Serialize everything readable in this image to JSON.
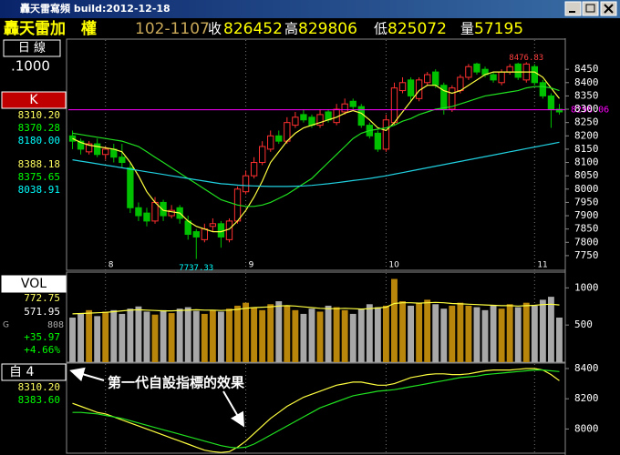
{
  "window": {
    "title": "轟天雷寫頻 build:2012-12-18"
  },
  "header": {
    "name": "轟天雷加　權",
    "code": "102-1107",
    "quotes": [
      {
        "label": "收",
        "value": "826452"
      },
      {
        "label": "高",
        "value": "829806"
      },
      {
        "label": "低",
        "value": "825072"
      },
      {
        "label": "量",
        "value": "57195"
      }
    ]
  },
  "side": {
    "period": "日 線",
    "scale": ".1000",
    "k_box": "K",
    "k_values": [
      {
        "text": "8310.20",
        "color": "#ffff60"
      },
      {
        "text": "8370.28",
        "color": "#00ff00"
      },
      {
        "text": "8180.00",
        "color": "#00ffff"
      },
      {
        "text": "8388.18",
        "color": "#ffff60"
      },
      {
        "text": "8375.65",
        "color": "#00ff00"
      },
      {
        "text": "8038.91",
        "color": "#00ffff"
      }
    ],
    "vol_box": "VOL",
    "vol_values": [
      {
        "text": "772.75",
        "color": "#ffff60"
      },
      {
        "text": "571.95",
        "color": "#ffffff"
      }
    ],
    "vol_extra": {
      "prefix": "G",
      "text": "808"
    },
    "vol_change": [
      {
        "text": "+35.97",
        "color": "#00ff00"
      },
      {
        "text": "+4.66%",
        "color": "#00ff00"
      }
    ],
    "ind_box": "自 4",
    "ind_values": [
      {
        "text": "8310.20",
        "color": "#ffff60"
      },
      {
        "text": "8383.60",
        "color": "#00ff00"
      }
    ]
  },
  "annotation": "第一代自設指標的效果",
  "chart_data": [
    {
      "type": "candlestick",
      "up_color": "#ff3030",
      "down_color": "#00c000",
      "categories": [
        null,
        null,
        null,
        null,
        "8",
        null,
        null,
        null,
        null,
        null,
        null,
        null,
        null,
        null,
        null,
        null,
        null,
        null,
        null,
        null,
        null,
        "9",
        null,
        null,
        null,
        null,
        null,
        null,
        null,
        null,
        null,
        null,
        null,
        null,
        null,
        null,
        null,
        null,
        "10",
        null,
        null,
        null,
        null,
        null,
        null,
        null,
        null,
        null,
        null,
        null,
        null,
        null,
        null,
        null,
        null,
        null,
        "11",
        null,
        null,
        null
      ],
      "open": [
        8200,
        8180,
        8140,
        8170,
        8130,
        8150,
        8120,
        8080,
        7930,
        7910,
        7880,
        7950,
        7900,
        7930,
        7880,
        7840,
        7810,
        7860,
        7870,
        7810,
        7880,
        7990,
        8050,
        8100,
        8150,
        8200,
        8180,
        8240,
        8280,
        8270,
        8240,
        8290,
        8250,
        8290,
        8330,
        8310,
        8240,
        8210,
        8150,
        8250,
        8370,
        8410,
        8340,
        8400,
        8440,
        8390,
        8300,
        8370,
        8420,
        8470,
        8450,
        8430,
        8400,
        8440,
        8470,
        8410,
        8460,
        8400,
        8350,
        8300
      ],
      "high": [
        8220,
        8190,
        8180,
        8190,
        8160,
        8170,
        8170,
        8100,
        7950,
        7930,
        7970,
        7960,
        7940,
        7940,
        7900,
        7850,
        7870,
        7890,
        7880,
        7890,
        8010,
        8070,
        8120,
        8180,
        8220,
        8220,
        8270,
        8290,
        8300,
        8280,
        8300,
        8300,
        8320,
        8340,
        8340,
        8320,
        8250,
        8220,
        8280,
        8400,
        8420,
        8420,
        8420,
        8440,
        8450,
        8400,
        8390,
        8430,
        8470,
        8475,
        8460,
        8440,
        8450,
        8470,
        8475,
        8476.83,
        8470,
        8410,
        8360,
        8320
      ],
      "low": [
        8150,
        8130,
        8130,
        8120,
        8110,
        8100,
        8080,
        7910,
        7880,
        7860,
        7870,
        7880,
        7890,
        7870,
        7810,
        7737.33,
        7800,
        7840,
        7780,
        7800,
        7870,
        7980,
        8040,
        8090,
        8140,
        8170,
        8170,
        8230,
        8250,
        8230,
        8230,
        8250,
        8240,
        8280,
        8300,
        8230,
        8190,
        8140,
        8140,
        8240,
        8360,
        8330,
        8330,
        8390,
        8380,
        8280,
        8290,
        8360,
        8410,
        8430,
        8420,
        8400,
        8390,
        8430,
        8410,
        8400,
        8390,
        8340,
        8230,
        8280
      ],
      "close": [
        8180,
        8150,
        8170,
        8130,
        8150,
        8120,
        8100,
        7930,
        7900,
        7880,
        7950,
        7900,
        7920,
        7890,
        7830,
        7820,
        7850,
        7870,
        7820,
        7880,
        8000,
        8050,
        8100,
        8160,
        8200,
        8180,
        8250,
        8270,
        8260,
        8240,
        8280,
        8260,
        8300,
        8320,
        8310,
        8240,
        8200,
        8150,
        8260,
        8380,
        8400,
        8350,
        8410,
        8430,
        8390,
        8300,
        8380,
        8420,
        8460,
        8440,
        8430,
        8410,
        8440,
        8460,
        8420,
        8470,
        8400,
        8350,
        8300,
        8290
      ],
      "series": [
        {
          "color": "#ffff40",
          "values": [
            8190,
            8175,
            8165,
            8160,
            8155,
            8150,
            8140,
            8100,
            8050,
            7990,
            7950,
            7920,
            7915,
            7910,
            7880,
            7860,
            7850,
            7840,
            7840,
            7850,
            7880,
            7920,
            7970,
            8030,
            8100,
            8140,
            8180,
            8210,
            8230,
            8240,
            8250,
            8260,
            8270,
            8285,
            8295,
            8285,
            8260,
            8230,
            8220,
            8250,
            8290,
            8330,
            8370,
            8390,
            8390,
            8370,
            8360,
            8370,
            8390,
            8410,
            8430,
            8440,
            8440,
            8440,
            8440,
            8440,
            8440,
            8420,
            8380,
            8340
          ]
        },
        {
          "color": "#20e020",
          "values": [
            8210,
            8205,
            8200,
            8195,
            8190,
            8185,
            8180,
            8170,
            8160,
            8140,
            8120,
            8100,
            8080,
            8060,
            8040,
            8020,
            8000,
            7980,
            7960,
            7950,
            7940,
            7935,
            7935,
            7940,
            7950,
            7965,
            7980,
            8000,
            8020,
            8040,
            8070,
            8100,
            8130,
            8160,
            8190,
            8210,
            8220,
            8225,
            8230,
            8240,
            8255,
            8265,
            8280,
            8290,
            8300,
            8305,
            8310,
            8320,
            8330,
            8340,
            8350,
            8355,
            8360,
            8365,
            8370,
            8380,
            8385,
            8385,
            8380,
            8370
          ]
        },
        {
          "color": "#20d0e0",
          "values": [
            8110,
            8105,
            8100,
            8095,
            8090,
            8085,
            8080,
            8075,
            8070,
            8065,
            8060,
            8055,
            8050,
            8045,
            8040,
            8035,
            8030,
            8025,
            8020,
            8018,
            8015,
            8013,
            8012,
            8011,
            8010,
            8010,
            8010,
            8011,
            8012,
            8014,
            8017,
            8020,
            8024,
            8028,
            8032,
            8036,
            8040,
            8045,
            8050,
            8056,
            8062,
            8068,
            8074,
            8080,
            8086,
            8092,
            8098,
            8104,
            8110,
            8116,
            8122,
            8128,
            8134,
            8140,
            8146,
            8152,
            8158,
            8164,
            8170,
            8176
          ]
        }
      ],
      "reference_line": 8298.06,
      "reference_color": "#ff00ff",
      "ylim": [
        7695,
        8560
      ],
      "yticks": [
        7750,
        7800,
        7850,
        7900,
        7950,
        8000,
        8050,
        8100,
        8150,
        8200,
        8250,
        8300,
        8350,
        8400,
        8450
      ]
    },
    {
      "type": "bar",
      "up_color": "#b8860b",
      "down_color": "#a8a8a8",
      "values": [
        600,
        650,
        700,
        620,
        680,
        700,
        650,
        720,
        750,
        680,
        640,
        700,
        660,
        720,
        740,
        690,
        650,
        700,
        680,
        720,
        760,
        800,
        740,
        700,
        780,
        820,
        760,
        700,
        650,
        720,
        680,
        760,
        740,
        700,
        650,
        720,
        780,
        740,
        760,
        1120,
        820,
        760,
        800,
        840,
        780,
        720,
        760,
        800,
        760,
        740,
        700,
        760,
        720,
        780,
        740,
        800,
        760,
        840,
        880,
        600
      ],
      "series": [
        {
          "color": "#ffff40",
          "values": [
            650,
            655,
            660,
            665,
            670,
            680,
            690,
            700,
            705,
            700,
            695,
            690,
            690,
            695,
            700,
            705,
            700,
            700,
            695,
            700,
            710,
            725,
            735,
            740,
            745,
            755,
            760,
            755,
            745,
            735,
            725,
            720,
            720,
            725,
            720,
            715,
            720,
            730,
            740,
            790,
            800,
            800,
            795,
            800,
            805,
            800,
            790,
            785,
            780,
            775,
            770,
            765,
            760,
            760,
            755,
            760,
            765,
            775,
            780,
            770
          ]
        }
      ],
      "ylim": [
        0,
        1200
      ],
      "yticks": [
        500,
        1000
      ]
    },
    {
      "type": "line",
      "series": [
        {
          "color": "#ffff40",
          "values": [
            8170,
            8150,
            8130,
            8110,
            8100,
            8080,
            8060,
            8040,
            8020,
            8000,
            7980,
            7960,
            7940,
            7920,
            7900,
            7880,
            7860,
            7850,
            7845,
            7850,
            7880,
            7920,
            7970,
            8020,
            8070,
            8110,
            8150,
            8180,
            8210,
            8230,
            8250,
            8270,
            8290,
            8300,
            8310,
            8310,
            8300,
            8290,
            8290,
            8300,
            8320,
            8340,
            8350,
            8360,
            8365,
            8365,
            8360,
            8360,
            8365,
            8375,
            8385,
            8390,
            8390,
            8390,
            8395,
            8400,
            8400,
            8390,
            8360,
            8320
          ]
        },
        {
          "color": "#20e020",
          "values": [
            8110,
            8110,
            8105,
            8100,
            8090,
            8080,
            8070,
            8055,
            8040,
            8025,
            8010,
            7995,
            7980,
            7965,
            7950,
            7935,
            7920,
            7905,
            7890,
            7880,
            7875,
            7880,
            7900,
            7930,
            7960,
            7990,
            8020,
            8050,
            8080,
            8110,
            8140,
            8160,
            8180,
            8200,
            8220,
            8230,
            8240,
            8250,
            8255,
            8260,
            8270,
            8280,
            8290,
            8300,
            8310,
            8320,
            8330,
            8340,
            8345,
            8350,
            8360,
            8365,
            8370,
            8375,
            8380,
            8385,
            8390,
            8390,
            8385,
            8380
          ]
        }
      ],
      "ylim": [
        7840,
        8430
      ],
      "yticks": [
        8000,
        8200,
        8400
      ]
    }
  ]
}
